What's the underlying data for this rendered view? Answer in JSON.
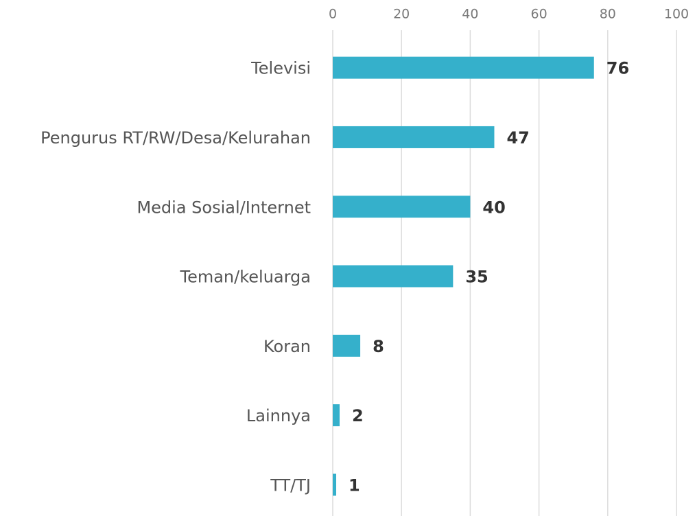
{
  "chart_data": {
    "type": "bar",
    "orientation": "horizontal",
    "categories": [
      "Televisi",
      "Pengurus RT/RW/Desa/Kelurahan",
      "Media Sosial/Internet",
      "Teman/keluarga",
      "Koran",
      "Lainnya",
      "TT/TJ"
    ],
    "values": [
      76,
      47,
      40,
      35,
      8,
      2,
      1
    ],
    "color": "#35b0cb",
    "xlim": [
      0,
      100
    ],
    "xticks": [
      0,
      20,
      40,
      60,
      80,
      100
    ],
    "grid": true
  }
}
